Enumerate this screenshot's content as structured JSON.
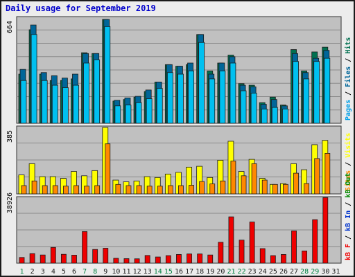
{
  "title": "Daily usage for September 2019",
  "colors": {
    "hits": "#00c0f0",
    "hits_shadow": "#006699",
    "files": "#007050",
    "pages": "#00a0e8",
    "visits": "#ffff00",
    "sites": "#ff8800",
    "kbf": "#ee0000",
    "kbin": "#0033cc",
    "kbout": "#008800",
    "grid": "#8a8a8a",
    "plot_bg": "#c0c0c0",
    "day_label": "#1a1a1a",
    "weekend_label": "#008040"
  },
  "chart_data": [
    {
      "type": "bar",
      "name": "hits",
      "y_label_max": "664",
      "ylim": [
        0,
        664
      ],
      "legend": [
        "Pages",
        "Files",
        "Hits"
      ],
      "series": [
        {
          "name": "Hits",
          "values": [
            340,
            620,
            320,
            300,
            285,
            310,
            440,
            440,
            655,
            145,
            160,
            170,
            210,
            260,
            370,
            360,
            380,
            560,
            310,
            380,
            420,
            240,
            230,
            120,
            150,
            110,
            440,
            320,
            410,
            460
          ]
        },
        {
          "name": "Files",
          "values": [
            310,
            590,
            310,
            270,
            270,
            280,
            445,
            440,
            655,
            140,
            150,
            165,
            200,
            260,
            370,
            360,
            370,
            560,
            330,
            380,
            430,
            250,
            240,
            130,
            165,
            115,
            465,
            330,
            450,
            480
          ]
        },
        {
          "name": "Pages",
          "values": [
            270,
            560,
            270,
            240,
            225,
            240,
            380,
            400,
            610,
            110,
            115,
            130,
            155,
            220,
            320,
            310,
            330,
            510,
            280,
            330,
            380,
            205,
            190,
            90,
            100,
            90,
            390,
            280,
            390,
            410
          ]
        }
      ]
    },
    {
      "type": "bar",
      "name": "visits",
      "y_label_max": "385",
      "ylim": [
        0,
        385
      ],
      "legend": [
        "Visits",
        "Sites"
      ],
      "series": [
        {
          "name": "Visits",
          "values": [
            110,
            175,
            100,
            100,
            90,
            130,
            105,
            135,
            385,
            80,
            70,
            75,
            100,
            95,
            115,
            125,
            155,
            160,
            95,
            195,
            305,
            130,
            200,
            90,
            55,
            60,
            175,
            140,
            285,
            310
          ]
        },
        {
          "name": "Sites",
          "values": [
            48,
            75,
            48,
            48,
            45,
            48,
            45,
            48,
            290,
            55,
            48,
            48,
            45,
            45,
            48,
            48,
            50,
            72,
            58,
            75,
            190,
            105,
            175,
            80,
            55,
            55,
            120,
            60,
            205,
            235
          ]
        }
      ]
    },
    {
      "type": "bar",
      "name": "kbytes",
      "y_label_max": "38926",
      "ylim": [
        0,
        38926
      ],
      "legend": [
        "kB F",
        "kB In",
        "kB Out"
      ],
      "series": [
        {
          "name": "kB F",
          "values": [
            3400,
            5700,
            4900,
            9400,
            5300,
            4800,
            18900,
            8200,
            8900,
            2900,
            2700,
            2600,
            4600,
            3700,
            4500,
            5200,
            5500,
            5500,
            4900,
            12500,
            27700,
            13800,
            24600,
            8700,
            4500,
            5200,
            19300,
            7300,
            26000,
            39200
          ]
        }
      ]
    }
  ],
  "days": [
    "1",
    "2",
    "3",
    "4",
    "5",
    "6",
    "7",
    "8",
    "9",
    "10",
    "11",
    "12",
    "13",
    "14",
    "15",
    "16",
    "17",
    "18",
    "19",
    "20",
    "21",
    "22",
    "23",
    "24",
    "25",
    "26",
    "27",
    "28",
    "29",
    "30",
    "31"
  ],
  "weekend_days": [
    "1",
    "7",
    "8",
    "14",
    "15",
    "21",
    "22",
    "28",
    "29"
  ]
}
